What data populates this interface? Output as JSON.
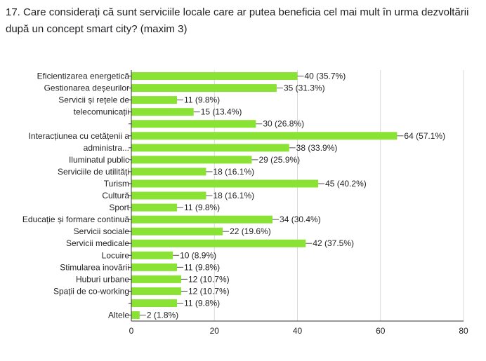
{
  "question": {
    "text": "17. Care considerați că sunt serviciile locale care ar putea beneficia cel mai mult în urma dezvoltării după un concept smart city? (maxim 3)"
  },
  "colors": {
    "bar": "#8AE234",
    "grid": "#d9d9d9",
    "axis": "#333333",
    "text": "#222222"
  },
  "chart_data": {
    "type": "bar",
    "orientation": "horizontal",
    "title": "",
    "xlim": [
      0,
      80
    ],
    "xticks": [
      0,
      20,
      40,
      60,
      80
    ],
    "grid": true,
    "categories": [
      {
        "label": [
          "Eficientizarea energetică"
        ],
        "value": 40,
        "text": "40 (35.7%)"
      },
      {
        "label": [
          "Gestionarea deșeurilor"
        ],
        "value": 35,
        "text": "35 (31.3%)"
      },
      {
        "label": [
          "Servicii și rețele de"
        ],
        "value": 11,
        "text": "11 (9.8%)"
      },
      {
        "label": [
          "telecomunicații"
        ],
        "value": 15,
        "text": "15 (13.4%)"
      },
      {
        "label": [],
        "value": 30,
        "text": "30 (26.8%)"
      },
      {
        "label": [
          "Interacțiunea cu cetățenii a"
        ],
        "value": 64,
        "text": "64 (57.1%)"
      },
      {
        "label": [
          "administra..."
        ],
        "value": 38,
        "text": "38 (33.9%)"
      },
      {
        "label": [
          "Iluminatul public"
        ],
        "value": 29,
        "text": "29 (25.9%)"
      },
      {
        "label": [
          "Serviciile de utilități"
        ],
        "value": 18,
        "text": "18 (16.1%)"
      },
      {
        "label": [
          "Turism"
        ],
        "value": 45,
        "text": "45 (40.2%)"
      },
      {
        "label": [
          "Cultură"
        ],
        "value": 18,
        "text": "18 (16.1%)"
      },
      {
        "label": [
          "Sport"
        ],
        "value": 11,
        "text": "11 (9.8%)"
      },
      {
        "label": [
          "Educație și formare continuă"
        ],
        "value": 34,
        "text": "34 (30.4%)"
      },
      {
        "label": [
          "Servicii sociale"
        ],
        "value": 22,
        "text": "22 (19.6%)"
      },
      {
        "label": [
          "Servicii medicale"
        ],
        "value": 42,
        "text": "42 (37.5%)"
      },
      {
        "label": [
          "Locuire"
        ],
        "value": 10,
        "text": "10 (8.9%)"
      },
      {
        "label": [
          "Stimularea inovării"
        ],
        "value": 11,
        "text": "11 (9.8%)"
      },
      {
        "label": [
          "Huburi urbane"
        ],
        "value": 12,
        "text": "12 (10.7%)"
      },
      {
        "label": [
          "Spații de co-working"
        ],
        "value": 12,
        "text": "12 (10.7%)"
      },
      {
        "label": [],
        "value": 11,
        "text": "11 (9.8%)"
      },
      {
        "label": [
          "Altele"
        ],
        "value": 2,
        "text": "2 (1.8%)"
      }
    ]
  }
}
